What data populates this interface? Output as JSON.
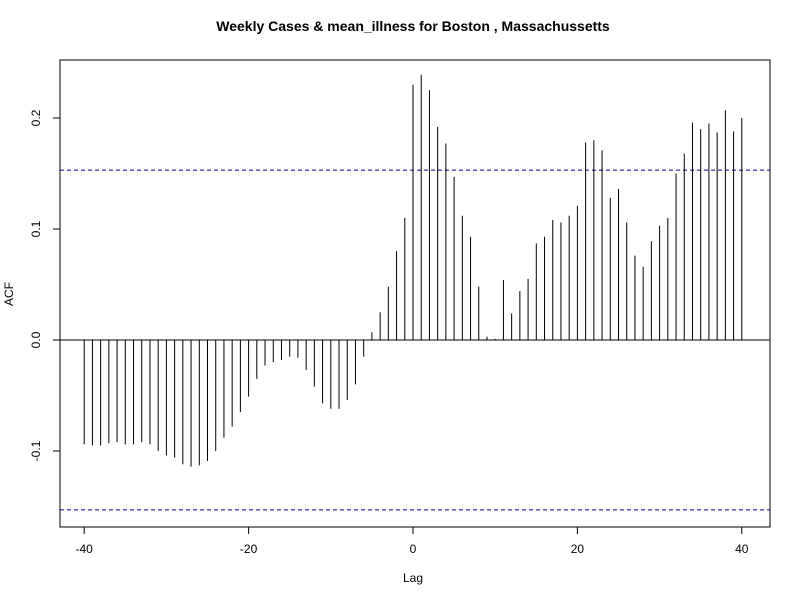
{
  "chart_data": {
    "type": "bar",
    "title": "Weekly Cases & mean_illness for Boston , Massachussetts",
    "xlabel": "Lag",
    "ylabel": "ACF",
    "x_ticks": [
      -40,
      -20,
      0,
      20,
      40
    ],
    "y_ticks": [
      -0.1,
      0.0,
      0.1,
      0.2
    ],
    "y_tick_labels": [
      "-0.1",
      "0.0",
      "0.1",
      "0.2"
    ],
    "x_tick_labels": [
      "-40",
      "-20",
      "0",
      "20",
      "40"
    ],
    "xlim": [
      -41.6,
      41.6
    ],
    "ylim": [
      -0.168,
      0.253
    ],
    "confidence_bound": 0.153,
    "bound_color": "#00008b",
    "series": [
      {
        "lags": [
          -40,
          -39,
          -38,
          -37,
          -36,
          -35,
          -34,
          -33,
          -32,
          -31,
          -30,
          -29,
          -28,
          -27,
          -26,
          -25,
          -24,
          -23,
          -22,
          -21,
          -20,
          -19,
          -18,
          -17,
          -16,
          -15,
          -14,
          -13,
          -12,
          -11,
          -10,
          -9,
          -8,
          -7,
          -6,
          -5,
          -4,
          -3,
          -2,
          -1,
          0,
          1,
          2,
          3,
          4,
          5,
          6,
          7,
          8,
          9,
          10,
          11,
          12,
          13,
          14,
          15,
          16,
          17,
          18,
          19,
          20,
          21,
          22,
          23,
          24,
          25,
          26,
          27,
          28,
          29,
          30,
          31,
          32,
          33,
          34,
          35,
          36,
          37,
          38,
          39,
          40
        ],
        "values": [
          -0.094,
          -0.095,
          -0.095,
          -0.093,
          -0.092,
          -0.094,
          -0.094,
          -0.092,
          -0.094,
          -0.1,
          -0.104,
          -0.106,
          -0.112,
          -0.114,
          -0.113,
          -0.109,
          -0.1,
          -0.088,
          -0.078,
          -0.065,
          -0.051,
          -0.035,
          -0.023,
          -0.02,
          -0.018,
          -0.015,
          -0.016,
          -0.027,
          -0.042,
          -0.057,
          -0.062,
          -0.062,
          -0.054,
          -0.04,
          -0.015,
          0.007,
          0.025,
          0.048,
          0.08,
          0.11,
          0.23,
          0.239,
          0.225,
          0.192,
          0.177,
          0.147,
          0.112,
          0.093,
          0.048,
          0.003,
          0.001,
          0.054,
          0.024,
          0.044,
          0.055,
          0.087,
          0.093,
          0.108,
          0.106,
          0.112,
          0.121,
          0.178,
          0.18,
          0.171,
          0.128,
          0.136,
          0.106,
          0.076,
          0.066,
          0.089,
          0.103,
          0.11,
          0.15,
          0.168,
          0.196,
          0.19,
          0.195,
          0.187,
          0.207,
          0.188,
          0.2
        ]
      }
    ]
  }
}
